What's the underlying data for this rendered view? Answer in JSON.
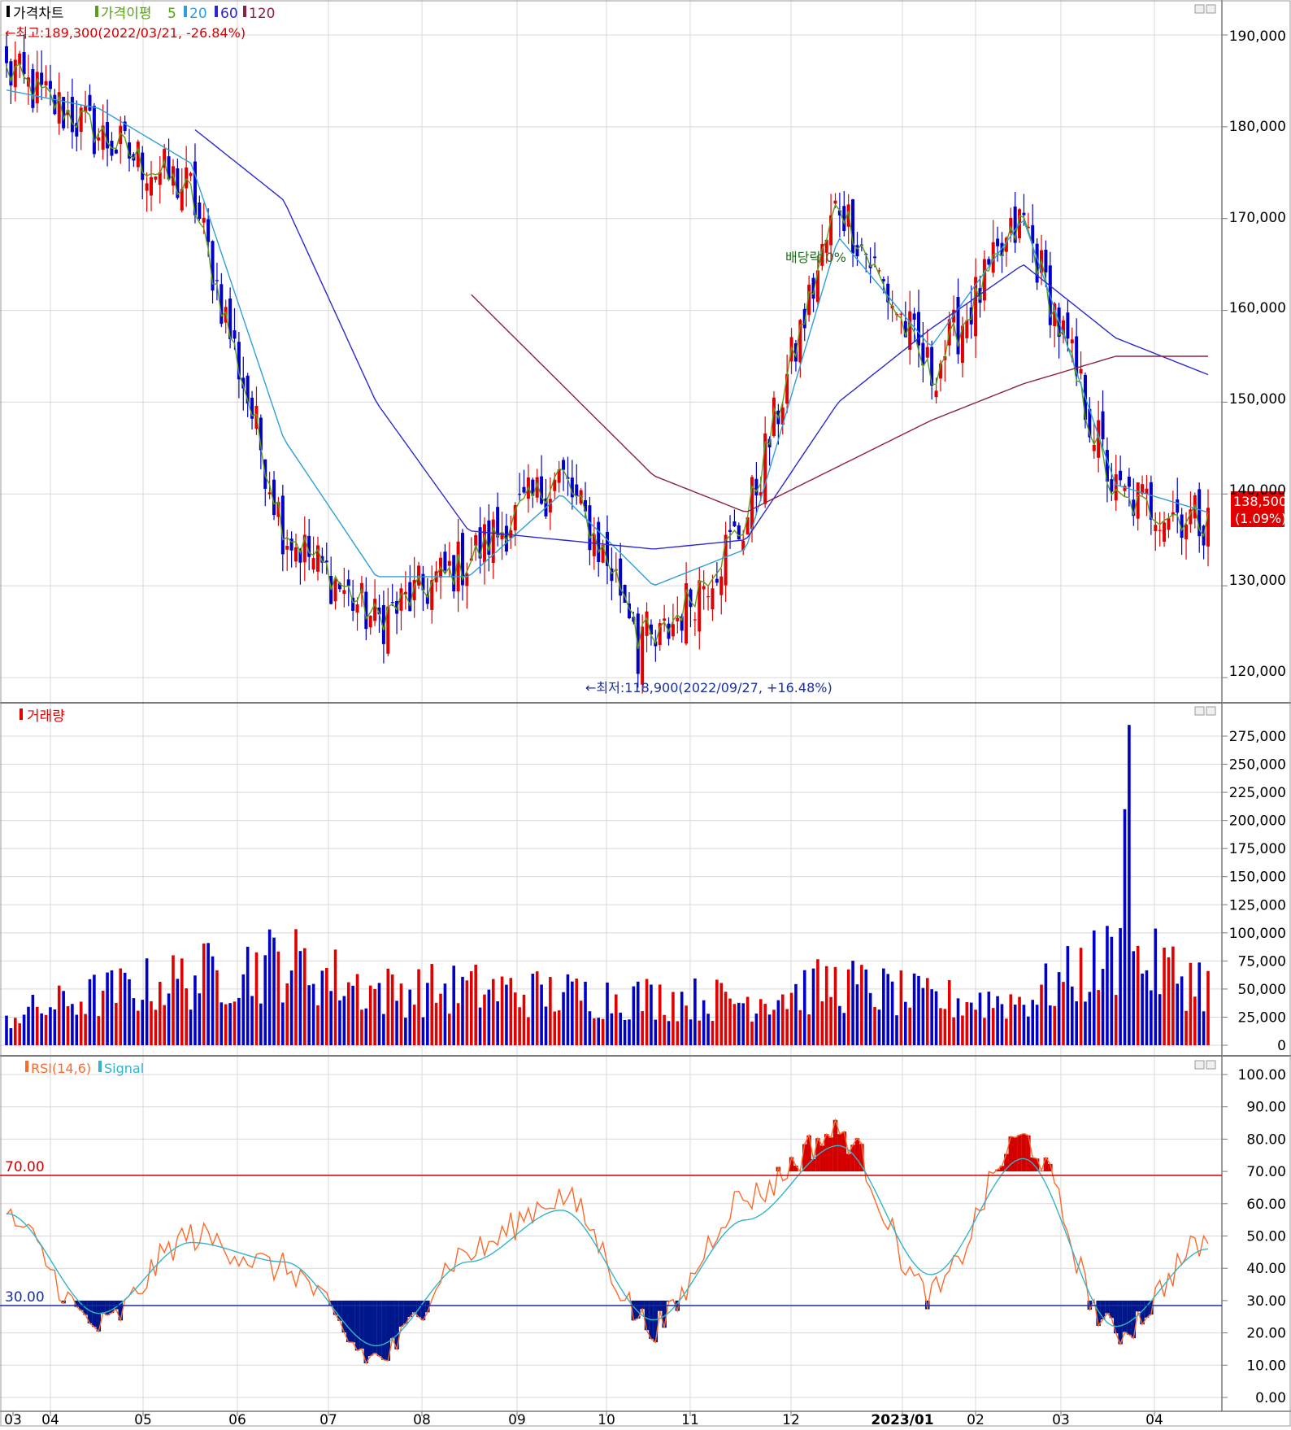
{
  "colors": {
    "up": "#e00000",
    "down": "#0000c8",
    "ma5": "#5a9e1a",
    "ma20": "#2f9fd8",
    "ma60": "#2a2acc",
    "ma120": "#8b2244",
    "rsi": "#ff6a2a",
    "signal": "#34b4c8",
    "grid": "#d8d8d8",
    "frame": "#888888",
    "overbought_fill": "#d40000",
    "oversold_fill": "#00178c"
  },
  "price_panel": {
    "legend": {
      "price_label": "가격차트",
      "ma_label": "가격이평",
      "ma5": "5",
      "ma20": "20",
      "ma60": "60",
      "ma120": "120"
    },
    "high_annotation": "←최고:189,300(2022/03/21, -26.84%)",
    "low_annotation": "←최저:118,900(2022/09/27, +16.48%)",
    "ex_dividend_note": "배당락:0%",
    "current_price_label": "138,500",
    "current_change_label": "(1.09%)",
    "y_tick_labels": [
      "190,000",
      "180,000",
      "170,000",
      "160,000",
      "150,000",
      "140,000",
      "130,000",
      "120,000"
    ]
  },
  "volume_panel": {
    "legend": "거래량",
    "y_tick_labels": [
      "275,000",
      "250,000",
      "225,000",
      "200,000",
      "175,000",
      "150,000",
      "125,000",
      "100,000",
      "75,000",
      "50,000",
      "25,000",
      "0"
    ]
  },
  "rsi_panel": {
    "legend_rsi": "RSI(14,6)",
    "legend_signal": "Signal",
    "upper_level_label": "70.00",
    "lower_level_label": "30.00",
    "y_tick_labels": [
      "100.00",
      "90.00",
      "80.00",
      "70.00",
      "60.00",
      "50.00",
      "40.00",
      "30.00",
      "20.00",
      "10.00",
      "0.00"
    ]
  },
  "x_axis": {
    "labels": [
      "03",
      "04",
      "05",
      "06",
      "07",
      "08",
      "09",
      "10",
      "11",
      "12",
      "2023/01",
      "02",
      "03",
      "04"
    ]
  },
  "chart_data": [
    {
      "type": "candlestick",
      "title": "가격차트",
      "period": "2022/03 - 2023/04 (daily)",
      "ylim": [
        117000,
        193000
      ],
      "yticks": [
        190000,
        180000,
        170000,
        160000,
        150000,
        140000,
        130000,
        120000
      ],
      "x": [
        "03",
        "04",
        "05",
        "06",
        "07",
        "08",
        "09",
        "10",
        "11",
        "12",
        "2023/01",
        "02",
        "03",
        "04"
      ],
      "highest": {
        "price": 189300,
        "date": "2022/03/21",
        "pct": "-26.84%"
      },
      "lowest": {
        "price": 118900,
        "date": "2022/09/27",
        "pct": "+16.48%"
      },
      "last_close": 138500,
      "last_change_pct": "1.09%",
      "close_anchors": [
        {
          "month": "03",
          "close": 186000
        },
        {
          "month": "04",
          "close": 179000
        },
        {
          "month": "05",
          "close": 173000
        },
        {
          "month": "06",
          "close": 136000
        },
        {
          "month": "07",
          "close": 126000
        },
        {
          "month": "08",
          "close": 133000
        },
        {
          "month": "09",
          "close": 142000
        },
        {
          "month": "10",
          "close": 123000
        },
        {
          "month": "11",
          "close": 137000
        },
        {
          "month": "12",
          "close": 172000
        },
        {
          "month": "2023/01",
          "close": 153000
        },
        {
          "month": "02",
          "close": 170000
        },
        {
          "month": "03",
          "close": 140000
        },
        {
          "month": "04",
          "close": 137000
        }
      ],
      "moving_averages": [
        {
          "name": "5",
          "values_approx": [
            186000,
            180000,
            172000,
            137000,
            127000,
            132000,
            143000,
            124000,
            137000,
            172000,
            152000,
            170000,
            138000,
            137000
          ]
        },
        {
          "name": "20",
          "values_approx": [
            184000,
            182000,
            176000,
            146000,
            131000,
            131000,
            140000,
            130000,
            134000,
            168000,
            156000,
            170000,
            141000,
            138000
          ]
        },
        {
          "name": "60",
          "values_approx": [
            null,
            null,
            180000,
            172000,
            150000,
            136000,
            135000,
            134000,
            135000,
            150000,
            158000,
            165000,
            157000,
            153000
          ]
        },
        {
          "name": "120",
          "values_approx": [
            null,
            null,
            null,
            null,
            null,
            162000,
            152000,
            142000,
            138000,
            143000,
            148000,
            152000,
            155000,
            155000
          ]
        }
      ]
    },
    {
      "type": "bar",
      "title": "거래량",
      "ylim": [
        0,
        290000
      ],
      "yticks": [
        275000,
        250000,
        225000,
        200000,
        175000,
        150000,
        125000,
        100000,
        75000,
        50000,
        25000,
        0
      ],
      "peak": {
        "value": 285000,
        "month": "03"
      },
      "monthly_typical_volume": [
        {
          "month": "03",
          "value": 25000
        },
        {
          "month": "04",
          "value": 45000
        },
        {
          "month": "05",
          "value": 60000
        },
        {
          "month": "06",
          "value": 75000
        },
        {
          "month": "07",
          "value": 48000
        },
        {
          "month": "08",
          "value": 50000
        },
        {
          "month": "09",
          "value": 45000
        },
        {
          "month": "10",
          "value": 42000
        },
        {
          "month": "11",
          "value": 40000
        },
        {
          "month": "12",
          "value": 55000
        },
        {
          "month": "2023/01",
          "value": 40000
        },
        {
          "month": "02",
          "value": 40000
        },
        {
          "month": "03",
          "value": 80000
        },
        {
          "month": "04",
          "value": 55000
        }
      ]
    },
    {
      "type": "line",
      "title": "RSI(14,6)",
      "ylim": [
        0,
        100
      ],
      "yticks": [
        100,
        90,
        80,
        70,
        60,
        50,
        40,
        30,
        20,
        10,
        0
      ],
      "levels": [
        70,
        30
      ],
      "series": [
        {
          "name": "RSI(14,6)",
          "values_approx": [
            55,
            22,
            50,
            40,
            12,
            45,
            62,
            22,
            62,
            82,
            32,
            80,
            20,
            48
          ]
        },
        {
          "name": "Signal",
          "values_approx": [
            57,
            26,
            48,
            42,
            16,
            42,
            58,
            24,
            55,
            78,
            38,
            74,
            22,
            46
          ]
        }
      ],
      "x": [
        "03",
        "04",
        "05",
        "06",
        "07",
        "08",
        "09",
        "10",
        "11",
        "12",
        "2023/01",
        "02",
        "03",
        "04"
      ]
    }
  ]
}
